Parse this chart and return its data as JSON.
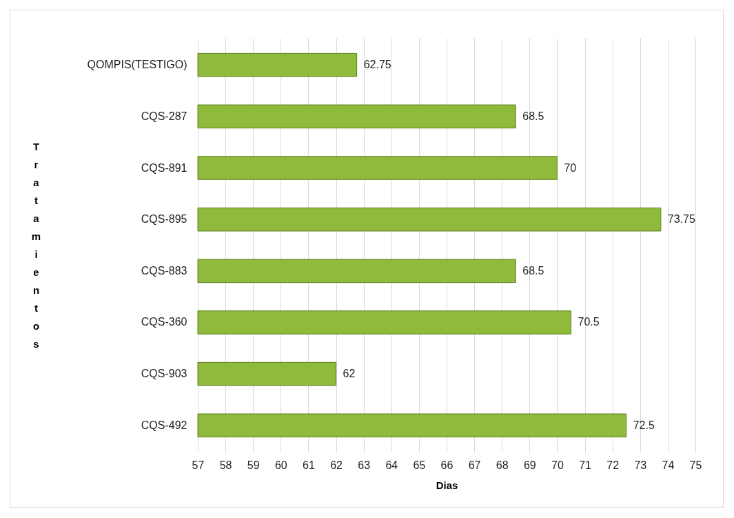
{
  "chart_data": {
    "type": "bar",
    "orientation": "horizontal",
    "xlabel": "Dias",
    "ylabel": "Tratamientos",
    "categories": [
      "QOMPIS(TESTIGO)",
      "CQS-287",
      "CQS-891",
      "CQS-895",
      "CQS-883",
      "CQS-360",
      "CQS-903",
      "CQS-492"
    ],
    "values": [
      62.75,
      68.5,
      70,
      73.75,
      68.5,
      70.5,
      62,
      72.5
    ],
    "color": "#8fba3c",
    "xlim": [
      57,
      75
    ],
    "xticks": [
      57,
      58,
      59,
      60,
      61,
      62,
      63,
      64,
      65,
      66,
      67,
      68,
      69,
      70,
      71,
      72,
      73,
      74,
      75
    ],
    "grid": "x",
    "data_labels": true
  }
}
